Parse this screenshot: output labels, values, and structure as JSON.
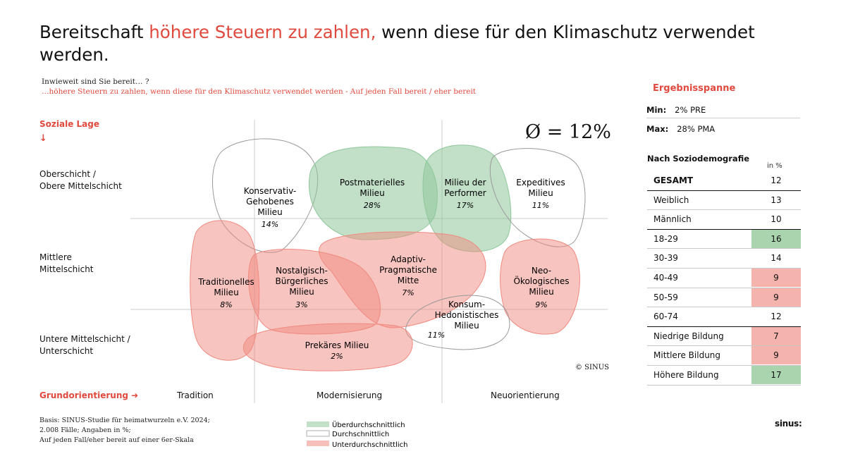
{
  "title": {
    "part1": "Bereitschaft ",
    "highlight": "höhere Steuern zu zahlen,",
    "part2": " wenn diese für den Klimaschutz verwendet werden."
  },
  "question": {
    "line1": "Inwieweit sind Sie bereit… ?",
    "line2": "…höhere Steuern zu zahlen, wenn diese für den Klimaschutz verwendet werden  - Auf jeden Fall bereit / eher bereit"
  },
  "colors": {
    "accent": "#e0493d",
    "above": "#8fc79a",
    "below": "#f08a80",
    "grid": "#cccccc",
    "cell_above": "#a9d4ae",
    "cell_below": "#f4b3ac"
  },
  "chart_data": {
    "type": "milieu-map",
    "title": "Bereitschaft höhere Steuern zu zahlen, wenn diese für den Klimaschutz verwendet werden.",
    "average_label": "Ø = 12%",
    "average_value": 12,
    "y_axis": {
      "label": "Soziale Lage",
      "arrow": "↓",
      "levels": [
        {
          "line1": "Oberschicht /",
          "line2": "Obere Mittelschicht"
        },
        {
          "line1": "Mittlere",
          "line2": "Mittelschicht"
        },
        {
          "line1": "Untere Mittelschicht /",
          "line2": "Unterschicht"
        }
      ]
    },
    "x_axis": {
      "label": "Grundorientierung",
      "arrow": "➜",
      "categories": [
        "Tradition",
        "Modernisierung",
        "Neuorientierung"
      ]
    },
    "milieus": [
      {
        "key": "kog",
        "lines": [
          "Konservativ-",
          "Gehobenes",
          "Milieu"
        ],
        "value": 14,
        "value_label": "14%",
        "category": "average"
      },
      {
        "key": "pmi",
        "lines": [
          "Postmaterielles",
          "Milieu"
        ],
        "value": 28,
        "value_label": "28%",
        "category": "above"
      },
      {
        "key": "per",
        "lines": [
          "Milieu der",
          "Performer"
        ],
        "value": 17,
        "value_label": "17%",
        "category": "above"
      },
      {
        "key": "exp",
        "lines": [
          "Expeditives",
          "Milieu"
        ],
        "value": 11,
        "value_label": "11%",
        "category": "average"
      },
      {
        "key": "tra",
        "lines": [
          "Traditionelles",
          "Milieu"
        ],
        "value": 8,
        "value_label": "8%",
        "category": "below"
      },
      {
        "key": "nos",
        "lines": [
          "Nostalgisch-",
          "Bürgerliches",
          "Milieu"
        ],
        "value": 3,
        "value_label": "3%",
        "category": "below"
      },
      {
        "key": "adp",
        "lines": [
          "Adaptiv-",
          "Pragmatische",
          "Mitte"
        ],
        "value": 7,
        "value_label": "7%",
        "category": "below"
      },
      {
        "key": "neo",
        "lines": [
          "Neo-",
          "Ökologisches",
          "Milieu"
        ],
        "value": 9,
        "value_label": "9%",
        "category": "below"
      },
      {
        "key": "hed",
        "lines": [
          "Konsum-",
          "Hedonistisches",
          "Milieu"
        ],
        "value": 11,
        "value_label": "11%",
        "category": "average"
      },
      {
        "key": "pre",
        "lines": [
          "Prekäres Milieu"
        ],
        "value": 2,
        "value_label": "2%",
        "category": "below"
      }
    ],
    "legend": [
      {
        "key": "above",
        "label": "Überdurchschnittlich"
      },
      {
        "key": "average",
        "label": "Durchschnittlich"
      },
      {
        "key": "below",
        "label": "Unterdurchschnittlich"
      }
    ]
  },
  "copyright": "© SINUS",
  "basis": {
    "line1": "Basis: SINUS-Studie für heimatwurzeln e.V. 2024;",
    "line2": "2.008 Fälle; Angaben in %;",
    "line3": "Auf jeden Fall/eher bereit auf einer 6er-Skala"
  },
  "logo": "sinus:",
  "panel": {
    "title": "Ergebnisspanne",
    "min_label": "Min:",
    "min_value": "2% PRE",
    "max_label": "Max:",
    "max_value": "28% PMA",
    "sozio_title": "Nach Soziodemografie",
    "unit": "in %",
    "rows": [
      {
        "label": "GESAMT",
        "value": "12",
        "highlight": "none",
        "bold": true
      },
      {
        "label": "Weiblich",
        "value": "13",
        "highlight": "none"
      },
      {
        "label": "Männlich",
        "value": "10",
        "highlight": "none"
      },
      {
        "label": "18-29",
        "value": "16",
        "highlight": "above"
      },
      {
        "label": "30-39",
        "value": "14",
        "highlight": "none"
      },
      {
        "label": "40-49",
        "value": "9",
        "highlight": "below"
      },
      {
        "label": "50-59",
        "value": "9",
        "highlight": "below"
      },
      {
        "label": "60-74",
        "value": "12",
        "highlight": "none"
      },
      {
        "label": "Niedrige Bildung",
        "value": "7",
        "highlight": "below"
      },
      {
        "label": "Mittlere Bildung",
        "value": "9",
        "highlight": "below"
      },
      {
        "label": "Höhere Bildung",
        "value": "17",
        "highlight": "above"
      }
    ]
  }
}
